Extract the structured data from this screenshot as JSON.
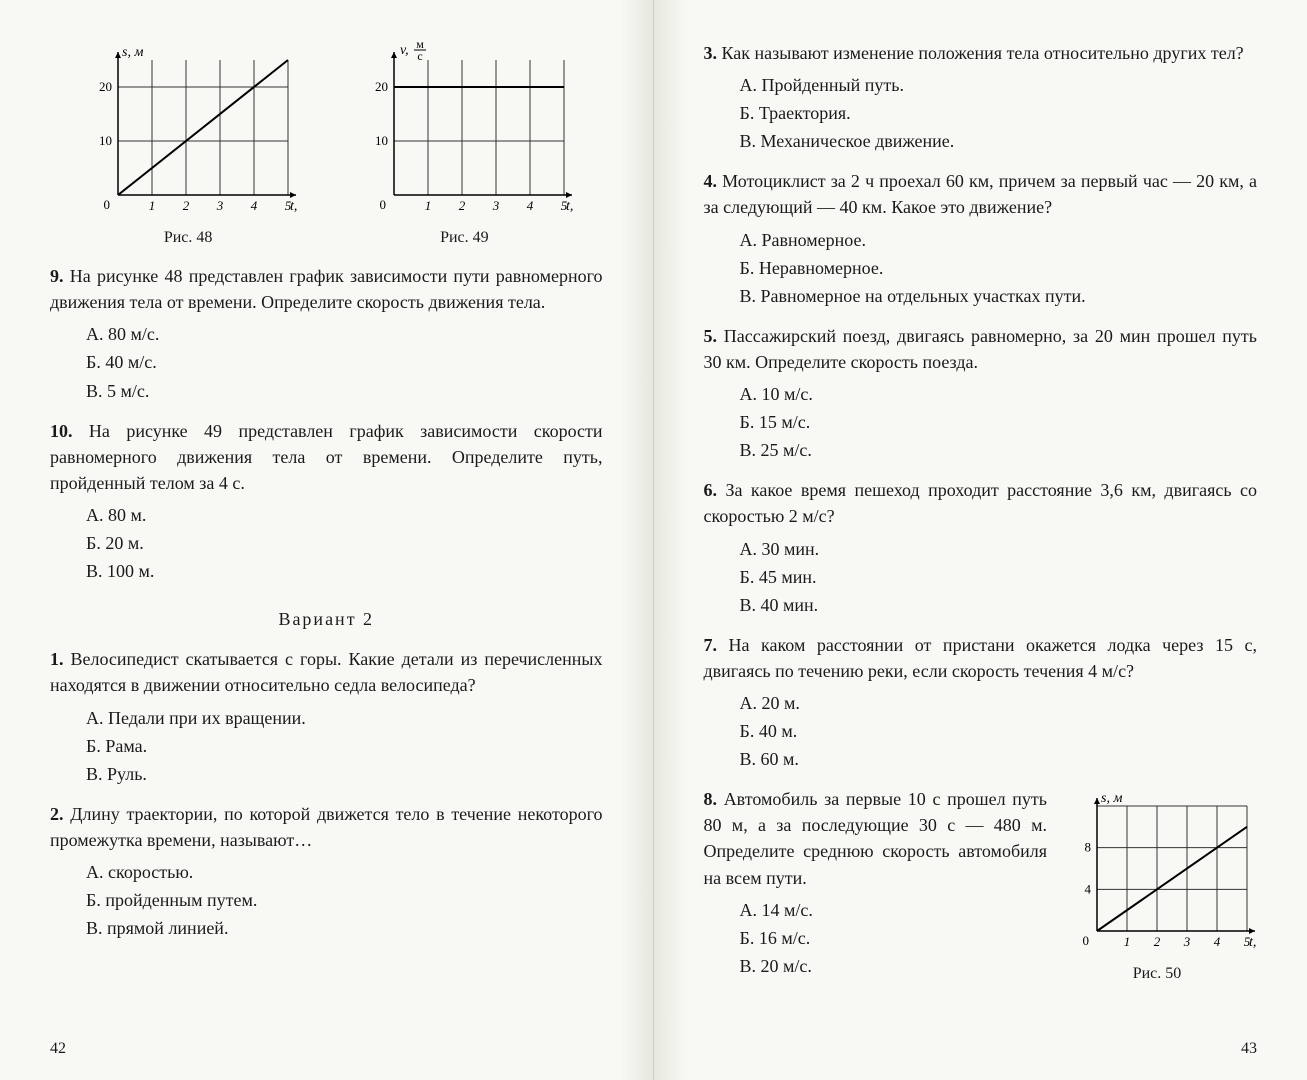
{
  "left": {
    "chart1": {
      "ylabel": "s, м",
      "xlabel": "t, с",
      "xticks": [
        "1",
        "2",
        "3",
        "4",
        "5"
      ],
      "yticks": [
        {
          "v": 10,
          "l": "10"
        },
        {
          "v": 20,
          "l": "20"
        }
      ],
      "xlim": 5,
      "ylim": 25,
      "line": [
        [
          0,
          0
        ],
        [
          5,
          25
        ]
      ],
      "caption": "Рис. 48",
      "grid_color": "#333",
      "line_color": "#000",
      "bg": "#f8f8f5"
    },
    "chart2": {
      "ylabel": "v, м/с",
      "xlabel": "t, с",
      "xticks": [
        "1",
        "2",
        "3",
        "4",
        "5"
      ],
      "yticks": [
        {
          "v": 10,
          "l": "10"
        },
        {
          "v": 20,
          "l": "20"
        }
      ],
      "xlim": 5,
      "ylim": 25,
      "line": [
        [
          0,
          20
        ],
        [
          5,
          20
        ]
      ],
      "caption": "Рис. 49",
      "grid_color": "#333",
      "line_color": "#000",
      "bg": "#f8f8f5"
    },
    "q9": {
      "num": "9.",
      "text": "На рисунке 48 представлен график зависимости пути равномерного движения тела от времени. Определите скорость движения тела.",
      "a": "А. 80 м/с.",
      "b": "Б. 40 м/с.",
      "c": "В. 5 м/с."
    },
    "q10": {
      "num": "10.",
      "text": "На рисунке 49 представлен график зависимости скорости равномерного движения тела от времени. Определите путь, пройденный телом за 4 с.",
      "a": "А. 80 м.",
      "b": "Б. 20 м.",
      "c": "В. 100 м."
    },
    "variant": "Вариант 2",
    "q1": {
      "num": "1.",
      "text": "Велосипедист скатывается с горы. Какие детали из перечисленных находятся в движении относительно седла велосипеда?",
      "a": "А. Педали при их вращении.",
      "b": "Б. Рама.",
      "c": "В. Руль."
    },
    "q2": {
      "num": "2.",
      "text": "Длину траектории, по которой движется тело в течение некоторого промежутка времени, называют…",
      "a": "А. скоростью.",
      "b": "Б. пройденным путем.",
      "c": "В. прямой линией."
    },
    "pagenum": "42"
  },
  "right": {
    "q3": {
      "num": "3.",
      "text": "Как называют изменение положения тела относительно других тел?",
      "a": "А. Пройденный путь.",
      "b": "Б. Траектория.",
      "c": "В. Механическое движение."
    },
    "q4": {
      "num": "4.",
      "text": "Мотоциклист за 2 ч проехал 60 км, причем за первый час — 20 км, а за следующий — 40 км. Какое это движение?",
      "a": "А. Равномерное.",
      "b": "Б. Неравномерное.",
      "c": "В. Равномерное на отдельных участках пути."
    },
    "q5": {
      "num": "5.",
      "text": "Пассажирский поезд, двигаясь равномерно, за 20 мин прошел путь 30 км. Определите скорость поезда.",
      "a": "А. 10 м/с.",
      "b": "Б. 15 м/с.",
      "c": "В. 25 м/с."
    },
    "q6": {
      "num": "6.",
      "text": "За какое время пешеход проходит расстояние 3,6 км, двигаясь со скоростью 2 м/с?",
      "a": "А. 30 мин.",
      "b": "Б. 45 мин.",
      "c": "В. 40 мин."
    },
    "q7": {
      "num": "7.",
      "text": "На каком расстоянии от пристани окажется лодка через 15 с, двигаясь по течению реки, если скорость течения 4 м/с?",
      "a": "А. 20 м.",
      "b": "Б. 40 м.",
      "c": "В. 60 м."
    },
    "q8": {
      "num": "8.",
      "text": "Автомобиль за первые 10 с прошел путь 80 м, а за последующие 30 с — 480 м. Определите среднюю скорость автомобиля на всем пути.",
      "a": "А. 14 м/с.",
      "b": "Б. 16 м/с.",
      "c": "В. 20 м/с."
    },
    "chart3": {
      "ylabel": "s, м",
      "xlabel": "t, с",
      "xticks": [
        "1",
        "2",
        "3",
        "4",
        "5"
      ],
      "yticks": [
        {
          "v": 4,
          "l": "4"
        },
        {
          "v": 8,
          "l": "8"
        }
      ],
      "xlim": 5,
      "ylim": 12,
      "line": [
        [
          0,
          0
        ],
        [
          5,
          10
        ]
      ],
      "caption": "Рис. 50",
      "grid_color": "#333",
      "line_color": "#000",
      "bg": "#f8f8f5"
    },
    "pagenum": "43"
  }
}
